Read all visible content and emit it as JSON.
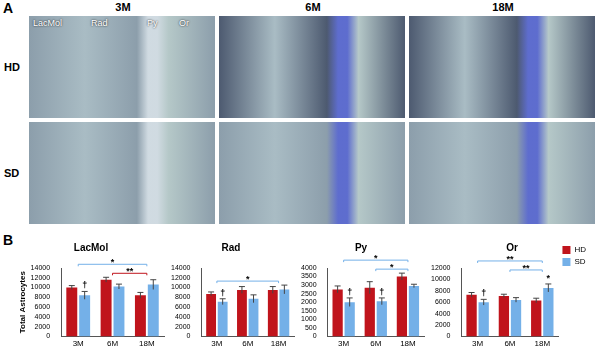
{
  "panel_a": {
    "label": "A",
    "columns": [
      "3M",
      "6M",
      "18M"
    ],
    "rows": [
      "HD",
      "SD"
    ],
    "layers": [
      "LacMol",
      "Rad",
      "Py",
      "Or"
    ]
  },
  "panel_b": {
    "label": "B"
  },
  "chart_data": [
    {
      "type": "bar",
      "title": "LacMol",
      "y_label": "Total Astrocytes",
      "categories": [
        "3M",
        "6M",
        "18M"
      ],
      "series": [
        {
          "name": "HD",
          "color": "#c0141c",
          "values": [
            10000,
            11600,
            8400
          ],
          "errors": [
            400,
            500,
            600
          ]
        },
        {
          "name": "SD",
          "color": "#74b0e8",
          "values": [
            8400,
            10200,
            10600
          ],
          "errors": [
            800,
            500,
            1000
          ]
        }
      ],
      "ylim": [
        0,
        14000
      ],
      "yticks": [
        0,
        2000,
        4000,
        6000,
        8000,
        10000,
        12000,
        14000
      ],
      "grid": false,
      "marks": [
        {
          "text": "†",
          "series": "SD",
          "category": "3M"
        }
      ],
      "brackets": [
        {
          "from": "6M",
          "to": "18M",
          "text": "**",
          "color": "#c0141c"
        },
        {
          "from": "3M",
          "to": "18M",
          "text": "*",
          "color": "#74b0e8"
        }
      ]
    },
    {
      "type": "bar",
      "title": "Rad",
      "categories": [
        "3M",
        "6M",
        "18M"
      ],
      "series": [
        {
          "name": "HD",
          "color": "#c0141c",
          "values": [
            8700,
            9500,
            9500
          ],
          "errors": [
            400,
            700,
            700
          ]
        },
        {
          "name": "SD",
          "color": "#74b0e8",
          "values": [
            7100,
            7700,
            9600
          ],
          "errors": [
            600,
            800,
            900
          ]
        }
      ],
      "ylim": [
        0,
        14000
      ],
      "yticks": [
        0,
        2000,
        4000,
        6000,
        8000,
        10000,
        12000,
        14000
      ],
      "grid": false,
      "marks": [
        {
          "text": "†",
          "series": "SD",
          "category": "3M"
        }
      ],
      "brackets": [
        {
          "from": "3M",
          "to": "18M",
          "text": "*",
          "color": "#74b0e8"
        }
      ]
    },
    {
      "type": "bar",
      "title": "Py",
      "categories": [
        "3M",
        "6M",
        "18M"
      ],
      "series": [
        {
          "name": "HD",
          "color": "#c0141c",
          "values": [
            2750,
            2850,
            3500
          ],
          "errors": [
            200,
            350,
            200
          ]
        },
        {
          "name": "SD",
          "color": "#74b0e8",
          "values": [
            2000,
            2050,
            2950
          ],
          "errors": [
            250,
            200,
            100
          ]
        }
      ],
      "ylim": [
        0,
        4000
      ],
      "yticks": [
        0,
        500,
        1000,
        1500,
        2000,
        2500,
        3000,
        3500,
        4000
      ],
      "grid": false,
      "marks": [
        {
          "text": "†",
          "series": "SD",
          "category": "3M"
        },
        {
          "text": "†",
          "series": "SD",
          "category": "6M"
        }
      ],
      "brackets": [
        {
          "from": "6M",
          "to": "18M",
          "text": "*",
          "color": "#74b0e8"
        },
        {
          "from": "3M",
          "to": "18M",
          "text": "*",
          "color": "#74b0e8"
        }
      ]
    },
    {
      "type": "bar",
      "title": "Or",
      "categories": [
        "3M",
        "6M",
        "18M"
      ],
      "legend": "right",
      "series": [
        {
          "name": "HD",
          "color": "#c0141c",
          "values": [
            7300,
            7100,
            6300
          ],
          "errors": [
            400,
            300,
            400
          ]
        },
        {
          "name": "SD",
          "color": "#74b0e8",
          "values": [
            6000,
            6400,
            8500
          ],
          "errors": [
            500,
            400,
            700
          ]
        }
      ],
      "ylim": [
        0,
        12000
      ],
      "yticks": [
        0,
        2000,
        4000,
        6000,
        8000,
        10000,
        12000
      ],
      "grid": false,
      "marks": [
        {
          "text": "†",
          "series": "SD",
          "category": "3M"
        },
        {
          "text": "*",
          "series": "SD",
          "category": "18M"
        }
      ],
      "brackets": [
        {
          "from": "6M",
          "to": "18M",
          "text": "**",
          "color": "#74b0e8"
        },
        {
          "from": "3M",
          "to": "18M",
          "text": "**",
          "color": "#74b0e8"
        }
      ]
    }
  ]
}
